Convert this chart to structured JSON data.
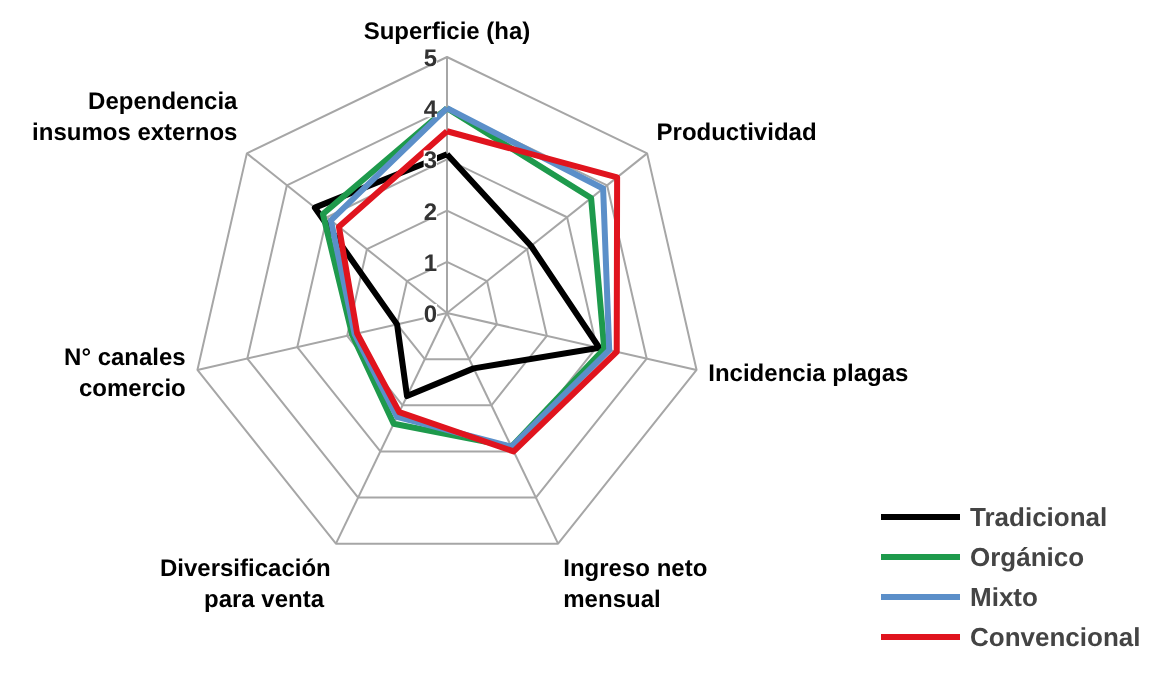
{
  "chart_data": {
    "type": "radar",
    "categories": [
      "Superficie (ha)",
      "Productividad",
      "Incidencia  plagas",
      "Ingreso neto\nmensual",
      "Diversificación\npara  venta",
      "N° canales\ncomercio",
      "Dependencia\ninsumos externos"
    ],
    "series": [
      {
        "name": "Tradicional",
        "color": "#000000",
        "values": [
          3.1,
          2.1,
          3.05,
          1.2,
          1.8,
          1.0,
          3.3
        ]
      },
      {
        "name": "Orgánico",
        "color": "#1e9a4c",
        "values": [
          4.0,
          3.6,
          3.15,
          2.9,
          2.4,
          1.9,
          3.1
        ]
      },
      {
        "name": "Mixto",
        "color": "#5b8fc9",
        "values": [
          4.0,
          3.9,
          3.25,
          2.9,
          2.25,
          1.85,
          2.9
        ]
      },
      {
        "name": "Convencional",
        "color": "#e0141e",
        "values": [
          3.55,
          4.25,
          3.4,
          3.0,
          2.15,
          1.8,
          2.7
        ]
      }
    ],
    "ylim": [
      0,
      5
    ],
    "yticks": [
      0,
      1,
      2,
      3,
      4,
      5
    ],
    "grid": true,
    "legend": "bottom right"
  }
}
